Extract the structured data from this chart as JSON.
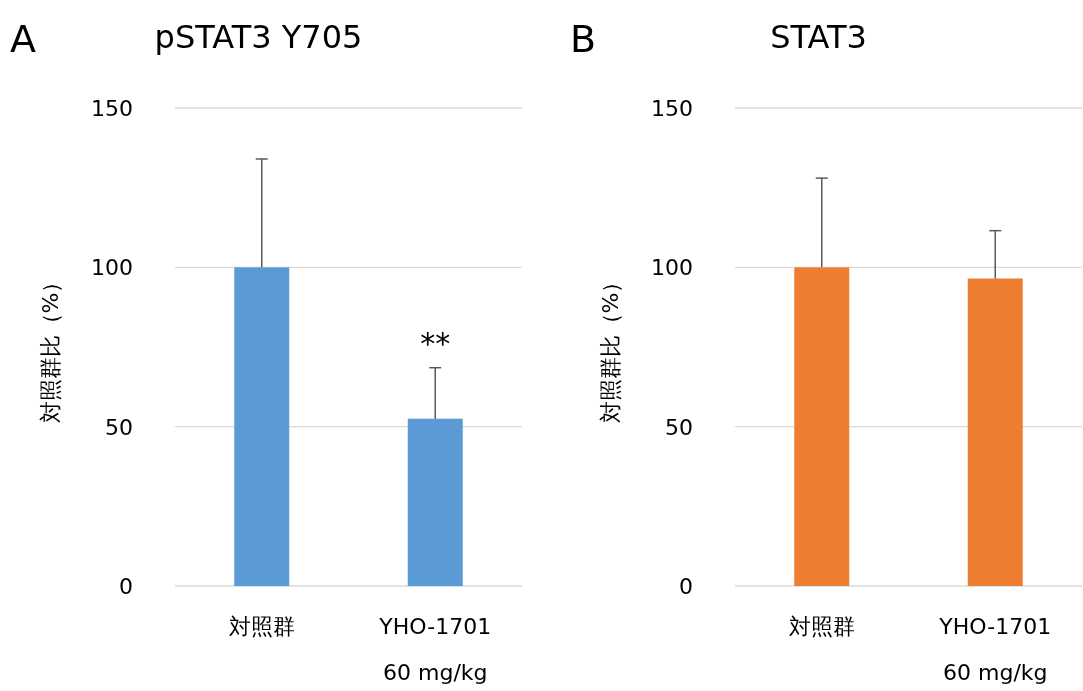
{
  "chart_data": [
    {
      "type": "bar",
      "title": "pSTAT3 Y705",
      "ylabel": "対照群比（%）",
      "categories": [
        "対照群",
        "YHO-1701\n60 mg/kg"
      ],
      "series": [
        {
          "color": "#5b9bd5",
          "values": [
            100,
            52.5
          ],
          "errors": [
            34,
            16
          ]
        }
      ],
      "ylim": [
        0,
        150
      ],
      "yticks": [
        0,
        50,
        100,
        150
      ],
      "grid": "y",
      "annotations": [
        "A",
        {
          "text": "**",
          "x": "YHO-1701\n60 mg/kg",
          "y": 68.5
        }
      ]
    },
    {
      "type": "bar",
      "title": "STAT3",
      "ylabel": "対照群比（%）",
      "categories": [
        "対照群",
        "YHO-1701\n60 mg/kg"
      ],
      "series": [
        {
          "color": "#ed7d31",
          "values": [
            100,
            96.5
          ],
          "errors": [
            28,
            15
          ]
        }
      ],
      "ylim": [
        0,
        150
      ],
      "yticks": [
        0,
        50,
        100,
        150
      ],
      "grid": "y",
      "annotations": [
        "B"
      ]
    }
  ]
}
